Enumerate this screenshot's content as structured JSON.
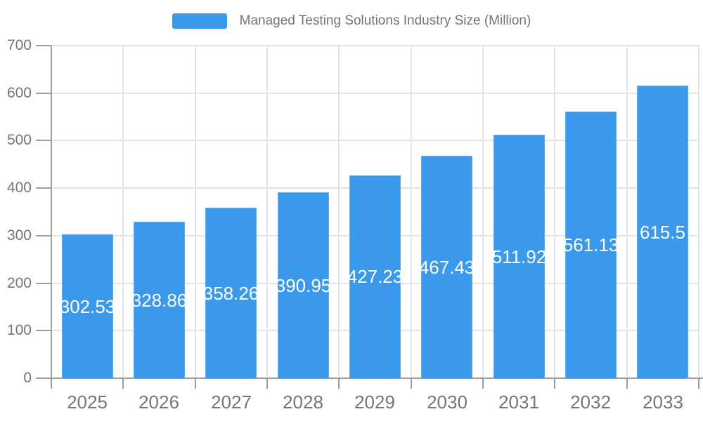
{
  "chart_data": {
    "type": "bar",
    "title": "Managed Testing Solutions Industry Size (Million)",
    "legend": {
      "label": "Managed Testing Solutions Industry Size (Million)",
      "position": "top"
    },
    "categories": [
      "2025",
      "2026",
      "2027",
      "2028",
      "2029",
      "2030",
      "2031",
      "2032",
      "2033"
    ],
    "values": [
      302.53,
      328.86,
      358.26,
      390.95,
      427.23,
      467.43,
      511.92,
      561.13,
      615.5
    ],
    "value_labels": [
      "302.53",
      "328.86",
      "358.26",
      "390.95",
      "427.23",
      "467.43",
      "511.92",
      "561.13",
      "615.5"
    ],
    "xlabel": "",
    "ylabel": "",
    "ylim": [
      0,
      700
    ],
    "yticks": [
      0,
      100,
      200,
      300,
      400,
      500,
      600,
      700
    ],
    "grid": true,
    "value_label_position": "inside-center",
    "colors": {
      "bar": "#3B99EC",
      "bar_edge": "#64ACF1",
      "axis": "#9E9E9E",
      "grid": "#E4E4E4",
      "text": "#757575",
      "value_text": "#FFFFFF",
      "background": "#FFFFFF"
    }
  }
}
